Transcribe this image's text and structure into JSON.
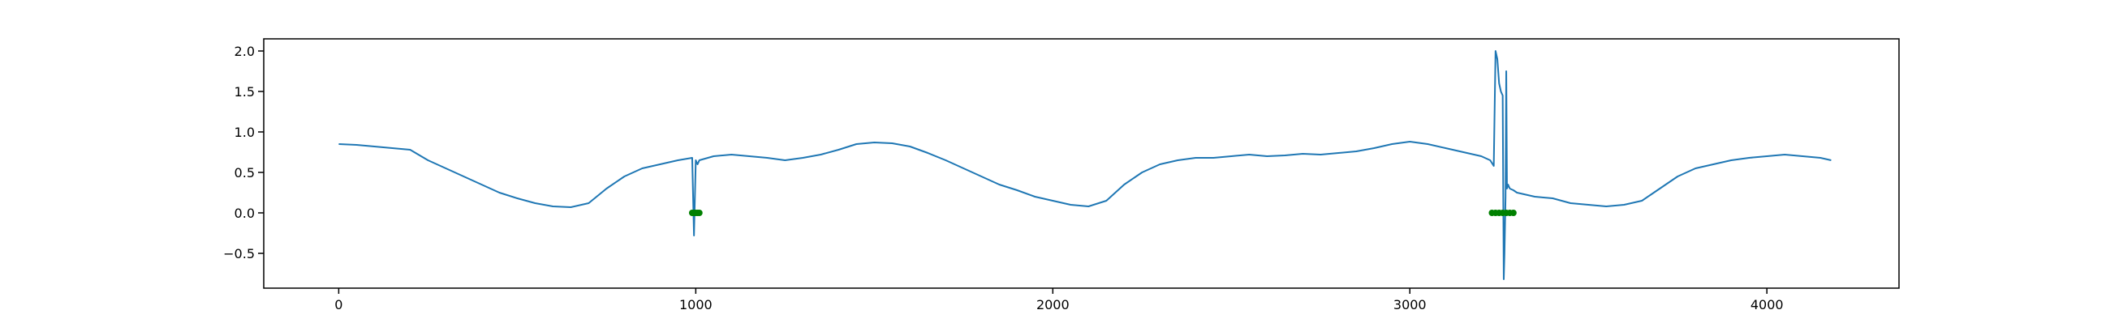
{
  "chart_data": {
    "type": "line",
    "title": "",
    "xlabel": "",
    "ylabel": "",
    "xlim": [
      -210,
      4370
    ],
    "ylim": [
      -0.93,
      2.15
    ],
    "xticks": [
      0,
      1000,
      2000,
      3000,
      4000
    ],
    "xtick_labels": [
      "0",
      "1000",
      "2000",
      "3000",
      "4000"
    ],
    "yticks": [
      -0.5,
      0.0,
      0.5,
      1.0,
      1.5,
      2.0
    ],
    "ytick_labels": [
      "−0.5",
      "0.0",
      "0.5",
      "1.0",
      "1.5",
      "2.0"
    ],
    "grid": false,
    "legend": "none",
    "series": [
      {
        "type": "line",
        "color": "#1f77b4",
        "x": [
          0,
          50,
          100,
          150,
          200,
          250,
          300,
          350,
          400,
          450,
          500,
          550,
          600,
          650,
          700,
          750,
          800,
          850,
          900,
          950,
          990,
          995,
          1000,
          1005,
          1010,
          1050,
          1100,
          1150,
          1200,
          1250,
          1300,
          1350,
          1400,
          1450,
          1500,
          1550,
          1600,
          1650,
          1700,
          1750,
          1800,
          1850,
          1900,
          1950,
          2000,
          2050,
          2100,
          2150,
          2200,
          2250,
          2300,
          2350,
          2400,
          2450,
          2500,
          2550,
          2600,
          2650,
          2700,
          2750,
          2800,
          2850,
          2900,
          2950,
          3000,
          3050,
          3100,
          3150,
          3200,
          3225,
          3235,
          3240,
          3245,
          3250,
          3255,
          3260,
          3263,
          3265,
          3268,
          3270,
          3272,
          3275,
          3280,
          3290,
          3300,
          3350,
          3400,
          3450,
          3500,
          3550,
          3600,
          3650,
          3700,
          3750,
          3800,
          3850,
          3900,
          3950,
          4000,
          4050,
          4100,
          4150,
          4180
        ],
        "y": [
          0.85,
          0.84,
          0.82,
          0.8,
          0.78,
          0.65,
          0.55,
          0.45,
          0.35,
          0.25,
          0.18,
          0.12,
          0.08,
          0.07,
          0.12,
          0.3,
          0.45,
          0.55,
          0.6,
          0.65,
          0.68,
          -0.28,
          0.65,
          0.6,
          0.65,
          0.7,
          0.72,
          0.7,
          0.68,
          0.65,
          0.68,
          0.72,
          0.78,
          0.85,
          0.87,
          0.86,
          0.82,
          0.74,
          0.65,
          0.55,
          0.45,
          0.35,
          0.28,
          0.2,
          0.15,
          0.1,
          0.08,
          0.15,
          0.35,
          0.5,
          0.6,
          0.65,
          0.68,
          0.68,
          0.7,
          0.72,
          0.7,
          0.71,
          0.73,
          0.72,
          0.74,
          0.76,
          0.8,
          0.85,
          0.88,
          0.85,
          0.8,
          0.75,
          0.7,
          0.65,
          0.58,
          2.0,
          1.9,
          1.6,
          1.5,
          1.45,
          -0.82,
          -0.5,
          0.2,
          1.75,
          0.3,
          0.35,
          0.3,
          0.28,
          0.25,
          0.2,
          0.18,
          0.12,
          0.1,
          0.08,
          0.1,
          0.15,
          0.3,
          0.45,
          0.55,
          0.6,
          0.65,
          0.68,
          0.7,
          0.72,
          0.7,
          0.68,
          0.65
        ]
      },
      {
        "type": "markers",
        "color": "#008000",
        "x": [
          990,
          995,
          1000,
          1005,
          1010,
          3230,
          3240,
          3250,
          3260,
          3270,
          3280,
          3290
        ],
        "y": [
          0,
          0,
          0,
          0,
          0,
          0,
          0,
          0,
          0,
          0,
          0,
          0
        ]
      }
    ]
  }
}
